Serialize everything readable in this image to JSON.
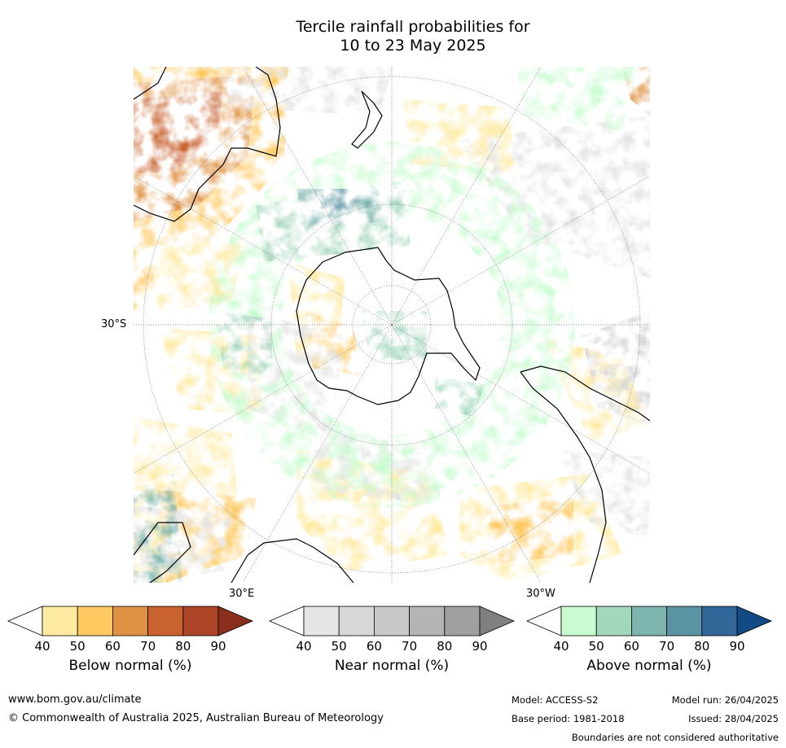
{
  "title_line1": "Tercile rainfall probabilities for",
  "title_line2": "10 to 23 May 2025",
  "map_labels": {
    "lat": "30°S",
    "lon_east": "30°E",
    "lon_west": "30°W"
  },
  "colorbars": [
    {
      "label": "Below normal (%)",
      "ticks": [
        "40",
        "50",
        "60",
        "70",
        "80",
        "90"
      ],
      "colors": [
        "#ffffff",
        "#feeaa0",
        "#fec960",
        "#e09244",
        "#c8622e",
        "#ad4427",
        "#8a2f1d"
      ]
    },
    {
      "label": "Near normal (%)",
      "ticks": [
        "40",
        "50",
        "60",
        "70",
        "80",
        "90"
      ],
      "colors": [
        "#ffffff",
        "#e6e6e6",
        "#d7d7d7",
        "#c8c8c8",
        "#b4b4b4",
        "#a0a0a0",
        "#808080"
      ]
    },
    {
      "label": "Above normal (%)",
      "ticks": [
        "40",
        "50",
        "60",
        "70",
        "80",
        "90"
      ],
      "colors": [
        "#ffffff",
        "#c8fcd0",
        "#a3d7bc",
        "#7cb5ae",
        "#5a93a2",
        "#326799",
        "#124a86"
      ]
    }
  ],
  "footer": {
    "website": "www.bom.gov.au/climate",
    "copyright": "© Commonwealth of Australia 2025, Australian Bureau of Meteorology",
    "model": "Model: ACCESS-S2",
    "base_period": "Base period: 1981-2018",
    "model_run": "Model run: 26/04/2025",
    "issued": "Issued: 28/04/2025",
    "disclaimer": "Boundaries are not considered authoritative"
  }
}
